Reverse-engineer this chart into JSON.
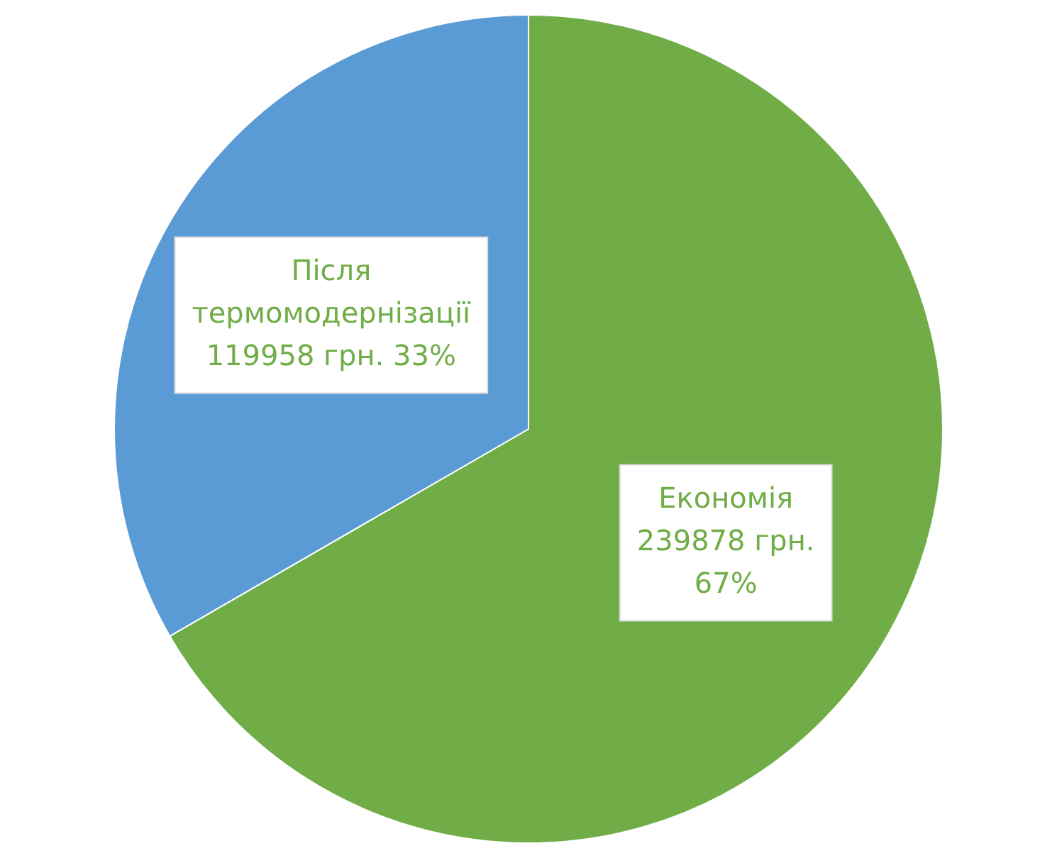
{
  "chart_data": {
    "type": "pie",
    "categories": [
      "Економія",
      "Після термомодернізації"
    ],
    "values": [
      239878,
      119958
    ],
    "colors": [
      "#70ad47",
      "#5b9bd5"
    ],
    "value_labels": [
      "239878 грн. 67%",
      "119958 грн. 33%"
    ],
    "legend": false
  }
}
